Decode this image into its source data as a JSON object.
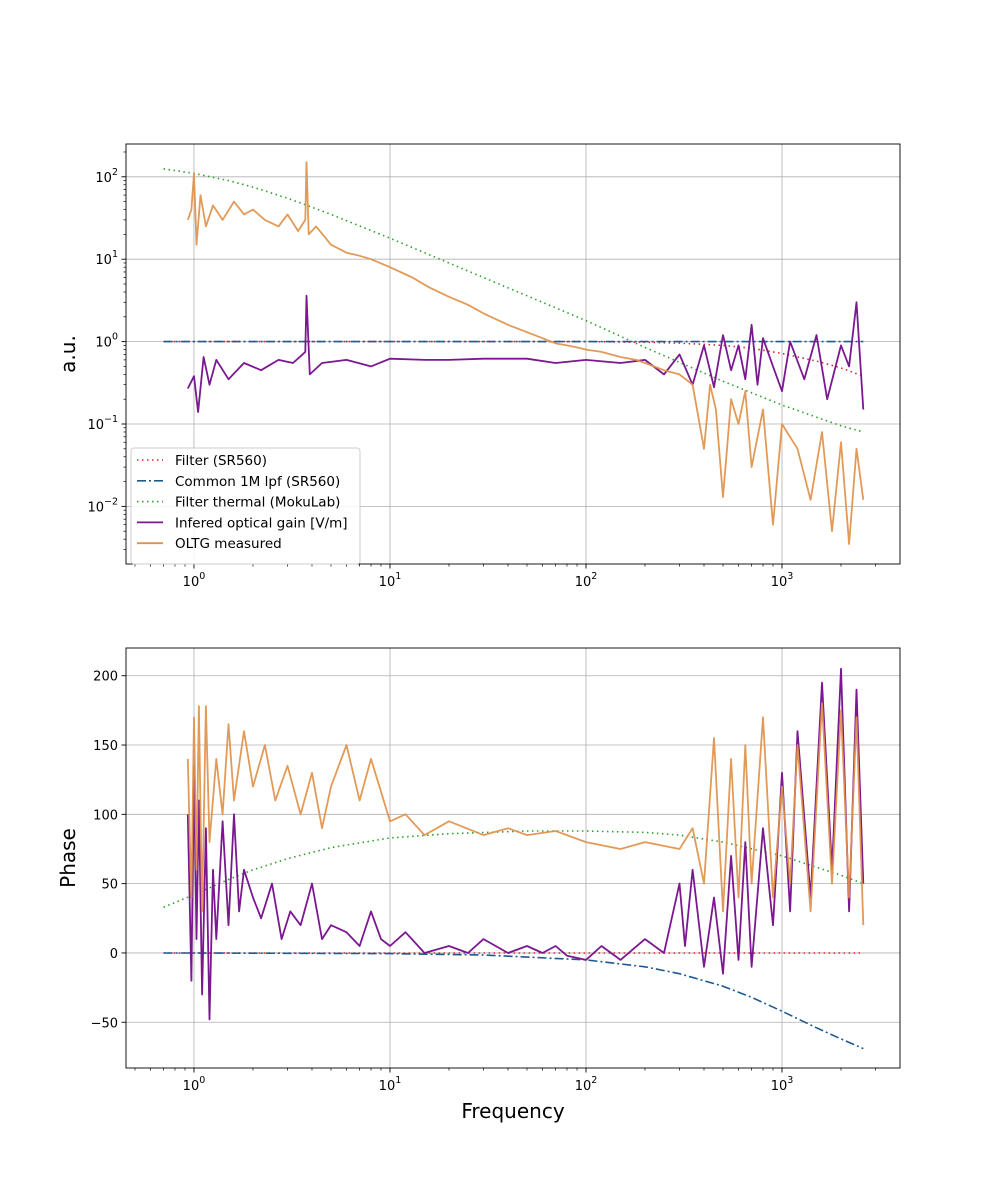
{
  "chart_data": [
    {
      "type": "line",
      "xscale": "log",
      "yscale": "log",
      "xlim": [
        0.45,
        4000
      ],
      "ylim": [
        0.002,
        250
      ],
      "xlabel": "",
      "ylabel": "a.u.",
      "grid": true,
      "legend_position": "lower-left",
      "x_ticks": [
        1,
        10,
        100,
        1000
      ],
      "x_tick_labels": [
        "10^0",
        "10^1",
        "10^2",
        "10^3"
      ],
      "y_ticks": [
        0.01,
        0.1,
        1,
        10,
        100
      ],
      "y_tick_labels": [
        "10^-2",
        "10^-1",
        "10^0",
        "10^1",
        "10^2"
      ],
      "series": [
        {
          "name": "Filter (SR560)",
          "color": "#d62728",
          "style": "dotted",
          "x": [
            0.7,
            1,
            3,
            10,
            30,
            100,
            200,
            300,
            500,
            700,
            1000,
            1500,
            2000,
            2600
          ],
          "y": [
            1,
            1,
            1,
            1,
            1,
            1,
            0.98,
            0.96,
            0.9,
            0.83,
            0.72,
            0.58,
            0.48,
            0.38
          ]
        },
        {
          "name": "Common 1M lpf (SR560)",
          "color": "#1f5a8f",
          "style": "dashdot",
          "x": [
            0.7,
            1,
            10,
            100,
            1000,
            2600
          ],
          "y": [
            1,
            1,
            1,
            1,
            1,
            1
          ]
        },
        {
          "name": "Filter thermal (MokuLab)",
          "color": "#2ca02c",
          "style": "dotted",
          "x": [
            0.7,
            1,
            1.5,
            2,
            3,
            5,
            10,
            20,
            50,
            100,
            200,
            500,
            1000,
            2000,
            2600
          ],
          "y": [
            125,
            110,
            90,
            75,
            55,
            35,
            18,
            9,
            3.6,
            1.8,
            0.85,
            0.33,
            0.17,
            0.095,
            0.08
          ]
        },
        {
          "name": "Infered optical gain [V/m]",
          "color": "#7b1890",
          "style": "solid",
          "x": [
            0.93,
            1.0,
            1.05,
            1.12,
            1.2,
            1.3,
            1.5,
            1.8,
            2.2,
            2.7,
            3.2,
            3.7,
            3.75,
            3.9,
            4.5,
            6,
            8,
            10,
            15,
            20,
            30,
            50,
            70,
            100,
            150,
            200,
            250,
            300,
            350,
            400,
            450,
            500,
            550,
            600,
            650,
            700,
            750,
            800,
            900,
            1000,
            1100,
            1300,
            1500,
            1700,
            2000,
            2200,
            2400,
            2600
          ],
          "y": [
            0.27,
            0.38,
            0.14,
            0.65,
            0.3,
            0.6,
            0.35,
            0.55,
            0.45,
            0.6,
            0.55,
            0.75,
            3.6,
            0.4,
            0.55,
            0.6,
            0.5,
            0.62,
            0.6,
            0.6,
            0.62,
            0.62,
            0.55,
            0.6,
            0.55,
            0.6,
            0.4,
            0.7,
            0.3,
            0.9,
            0.28,
            1.2,
            0.45,
            0.9,
            0.35,
            1.6,
            0.3,
            1.1,
            0.5,
            0.25,
            1.0,
            0.35,
            1.2,
            0.2,
            0.9,
            0.5,
            3.0,
            0.15
          ]
        },
        {
          "name": "OLTG measured",
          "color": "#e0914a",
          "style": "solid",
          "x": [
            0.93,
            0.97,
            1.0,
            1.03,
            1.08,
            1.15,
            1.25,
            1.4,
            1.6,
            1.8,
            2.0,
            2.3,
            2.7,
            3.0,
            3.4,
            3.7,
            3.75,
            3.85,
            4.2,
            5,
            6,
            7,
            8,
            10,
            13,
            16,
            20,
            25,
            30,
            40,
            50,
            60,
            70,
            80,
            90,
            100,
            120,
            150,
            180,
            200,
            250,
            300,
            350,
            400,
            430,
            460,
            500,
            550,
            600,
            650,
            700,
            800,
            900,
            1000,
            1200,
            1400,
            1600,
            1800,
            2000,
            2200,
            2400,
            2600
          ],
          "y": [
            30,
            40,
            110,
            15,
            60,
            25,
            45,
            30,
            50,
            35,
            40,
            30,
            25,
            35,
            22,
            30,
            150,
            20,
            25,
            15,
            12,
            11,
            10,
            8,
            6,
            4.5,
            3.5,
            2.8,
            2.2,
            1.6,
            1.3,
            1.1,
            0.95,
            0.9,
            0.85,
            0.8,
            0.75,
            0.65,
            0.6,
            0.55,
            0.45,
            0.4,
            0.3,
            0.05,
            0.3,
            0.15,
            0.013,
            0.2,
            0.1,
            0.25,
            0.03,
            0.15,
            0.006,
            0.1,
            0.05,
            0.012,
            0.08,
            0.005,
            0.06,
            0.0035,
            0.05,
            0.012
          ]
        }
      ]
    },
    {
      "type": "line",
      "xscale": "log",
      "yscale": "linear",
      "xlim": [
        0.45,
        4000
      ],
      "ylim": [
        -83,
        220
      ],
      "xlabel": "Frequency",
      "ylabel": "Phase",
      "grid": true,
      "x_ticks": [
        1,
        10,
        100,
        1000
      ],
      "x_tick_labels": [
        "10^0",
        "10^1",
        "10^2",
        "10^3"
      ],
      "y_ticks": [
        -50,
        0,
        50,
        100,
        150,
        200
      ],
      "y_tick_labels": [
        "−50",
        "0",
        "50",
        "100",
        "150",
        "200"
      ],
      "series": [
        {
          "name": "Filter (SR560)",
          "color": "#d62728",
          "style": "dotted",
          "x": [
            0.7,
            2600
          ],
          "y": [
            0,
            0
          ]
        },
        {
          "name": "Common 1M lpf (SR560)",
          "color": "#1f5a8f",
          "style": "dashdot",
          "x": [
            0.7,
            1,
            10,
            30,
            100,
            200,
            300,
            500,
            700,
            1000,
            1500,
            2000,
            2600
          ],
          "y": [
            0,
            0,
            -0.5,
            -1.5,
            -5,
            -10,
            -15,
            -24,
            -32,
            -42,
            -54,
            -62,
            -69
          ]
        },
        {
          "name": "Filter thermal (MokuLab)",
          "color": "#2ca02c",
          "style": "dotted",
          "x": [
            0.7,
            1,
            1.5,
            2,
            3,
            5,
            10,
            20,
            50,
            100,
            200,
            300,
            500,
            1000,
            2000,
            2600
          ],
          "y": [
            33,
            42,
            53,
            60,
            68,
            76,
            83,
            86,
            88,
            88,
            87,
            85,
            80,
            70,
            56,
            50
          ]
        },
        {
          "name": "Infered optical gain [V/m]",
          "color": "#7b1890",
          "style": "solid",
          "x": [
            0.93,
            0.97,
            1.0,
            1.03,
            1.06,
            1.1,
            1.15,
            1.2,
            1.25,
            1.3,
            1.4,
            1.5,
            1.6,
            1.7,
            1.8,
            2.0,
            2.2,
            2.5,
            2.8,
            3.1,
            3.5,
            4.0,
            4.5,
            5,
            6,
            7,
            8,
            9,
            10,
            12,
            15,
            20,
            25,
            30,
            40,
            50,
            60,
            70,
            80,
            100,
            120,
            150,
            200,
            250,
            300,
            320,
            350,
            400,
            450,
            500,
            550,
            600,
            650,
            700,
            800,
            900,
            1000,
            1100,
            1200,
            1400,
            1600,
            1800,
            2000,
            2200,
            2400,
            2600
          ],
          "y": [
            100,
            -20,
            135,
            10,
            110,
            -30,
            90,
            -48,
            60,
            10,
            95,
            20,
            100,
            30,
            60,
            40,
            25,
            50,
            10,
            30,
            20,
            50,
            10,
            20,
            15,
            5,
            30,
            10,
            5,
            15,
            0,
            5,
            0,
            10,
            0,
            5,
            0,
            5,
            -2,
            -5,
            5,
            -5,
            10,
            0,
            50,
            5,
            60,
            -10,
            40,
            -15,
            70,
            -5,
            80,
            -10,
            90,
            20,
            130,
            30,
            160,
            40,
            195,
            60,
            205,
            30,
            190,
            50
          ]
        },
        {
          "name": "OLTG measured",
          "color": "#e0914a",
          "style": "solid",
          "x": [
            0.93,
            0.97,
            1.0,
            1.03,
            1.06,
            1.1,
            1.15,
            1.2,
            1.3,
            1.4,
            1.5,
            1.6,
            1.8,
            2.0,
            2.3,
            2.6,
            3.0,
            3.5,
            4.0,
            4.5,
            5,
            6,
            7,
            8,
            10,
            12,
            15,
            20,
            30,
            40,
            50,
            70,
            100,
            150,
            200,
            300,
            350,
            400,
            450,
            500,
            550,
            600,
            650,
            700,
            800,
            900,
            1000,
            1100,
            1200,
            1400,
            1600,
            1800,
            2000,
            2200,
            2400,
            2600
          ],
          "y": [
            140,
            40,
            170,
            60,
            178,
            30,
            178,
            80,
            140,
            100,
            165,
            110,
            160,
            120,
            150,
            110,
            135,
            100,
            130,
            90,
            120,
            150,
            110,
            140,
            95,
            100,
            85,
            95,
            85,
            90,
            85,
            88,
            80,
            75,
            80,
            75,
            90,
            50,
            155,
            30,
            140,
            40,
            150,
            50,
            170,
            40,
            120,
            50,
            150,
            30,
            180,
            50,
            175,
            40,
            170,
            20
          ]
        }
      ]
    }
  ]
}
